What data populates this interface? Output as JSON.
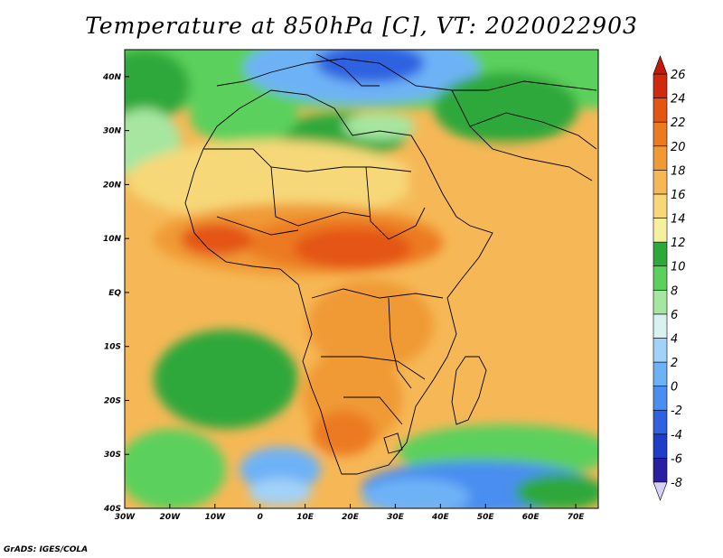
{
  "title": "Temperature at 850hPa [C], VT: 2020022903",
  "credit": "GrADS: IGES/COLA",
  "map": {
    "lon_range": [
      -30,
      75
    ],
    "lat_range": [
      -40,
      45
    ],
    "x_ticks": [
      {
        "lon": -30,
        "label": "30W"
      },
      {
        "lon": -20,
        "label": "20W"
      },
      {
        "lon": -10,
        "label": "10W"
      },
      {
        "lon": 0,
        "label": "0"
      },
      {
        "lon": 10,
        "label": "10E"
      },
      {
        "lon": 20,
        "label": "20E"
      },
      {
        "lon": 30,
        "label": "30E"
      },
      {
        "lon": 40,
        "label": "40E"
      },
      {
        "lon": 50,
        "label": "50E"
      },
      {
        "lon": 60,
        "label": "60E"
      },
      {
        "lon": 70,
        "label": "70E"
      }
    ],
    "y_ticks": [
      {
        "lat": 40,
        "label": "40N"
      },
      {
        "lat": 30,
        "label": "30N"
      },
      {
        "lat": 20,
        "label": "20N"
      },
      {
        "lat": 10,
        "label": "10N"
      },
      {
        "lat": 0,
        "label": "EQ"
      },
      {
        "lat": -10,
        "label": "10S"
      },
      {
        "lat": -20,
        "label": "20S"
      },
      {
        "lat": -30,
        "label": "30S"
      },
      {
        "lat": -40,
        "label": "40S"
      }
    ]
  },
  "colorbar": {
    "labels": [
      "26",
      "24",
      "22",
      "20",
      "18",
      "16",
      "14",
      "12",
      "10",
      "8",
      "6",
      "4",
      "2",
      "0",
      "-2",
      "-4",
      "-6",
      "-8"
    ],
    "colors": [
      "#2a1fa0",
      "#1e3ec8",
      "#2f62e0",
      "#4a8ef0",
      "#6eb2f6",
      "#a2d2f8",
      "#d8f2f0",
      "#a6e6a0",
      "#5cd05c",
      "#2ea83a",
      "#f4f0a0",
      "#f6d878",
      "#f6b856",
      "#f09a36",
      "#ec7a20",
      "#e45412",
      "#d02a0e"
    ],
    "top_color": "#c01a0a",
    "bottom_color": "#d8d0f8"
  }
}
